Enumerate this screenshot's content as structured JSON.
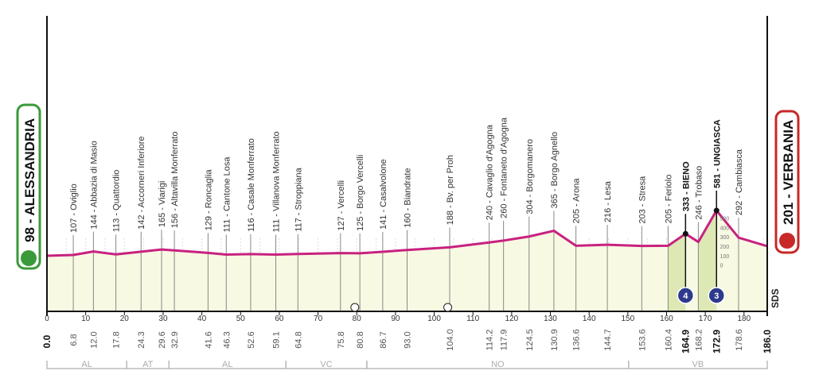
{
  "start": {
    "label": "98 - ALESSANDRIA",
    "color": "#3a9a3a"
  },
  "finish": {
    "label": "201 - VERBANIA",
    "color": "#c82828"
  },
  "chart_data": {
    "type": "area",
    "xlim": [
      0,
      186
    ],
    "ylabel": "",
    "xticks": [
      0,
      10,
      20,
      30,
      40,
      50,
      60,
      70,
      80,
      90,
      100,
      110,
      120,
      130,
      140,
      150,
      160,
      170,
      180
    ],
    "mini_scale": [
      0,
      100,
      200,
      300,
      400,
      500
    ],
    "line_color": "#c8217f",
    "points": [
      {
        "km": "0.0",
        "elev": 98,
        "name": "",
        "bold": true
      },
      {
        "km": "6.8",
        "elev": 107,
        "name": "107 - Oviglio"
      },
      {
        "km": "12.0",
        "elev": 144,
        "name": "144 - Abbazia di Masio"
      },
      {
        "km": "17.8",
        "elev": 113,
        "name": "113 - Quattordio"
      },
      {
        "km": "24.3",
        "elev": 142,
        "name": "142 - Accorneri Inferiore"
      },
      {
        "km": "29.6",
        "elev": 165,
        "name": "165 - Viarigi"
      },
      {
        "km": "32.9",
        "elev": 156,
        "name": "156 - Altavilla Monferrato"
      },
      {
        "km": "41.6",
        "elev": 129,
        "name": "129 - Roncaglia"
      },
      {
        "km": "46.3",
        "elev": 111,
        "name": "111 - Cantone Losa"
      },
      {
        "km": "52.6",
        "elev": 116,
        "name": "116 - Casale Monferrato"
      },
      {
        "km": "59.1",
        "elev": 111,
        "name": "111 - Villanova Monferrato"
      },
      {
        "km": "64.8",
        "elev": 117,
        "name": "117 - Stroppiana"
      },
      {
        "km": "75.8",
        "elev": 127,
        "name": "127 - Vercelli"
      },
      {
        "km": "80.8",
        "elev": 125,
        "name": "125 - Borgo Vercelli"
      },
      {
        "km": "86.7",
        "elev": 141,
        "name": "141 - Casalvolone"
      },
      {
        "km": "93.0",
        "elev": 160,
        "name": "160 - Biandrate"
      },
      {
        "km": "104.0",
        "elev": 188,
        "name": "188 - Bv. per Proh"
      },
      {
        "km": "114.2",
        "elev": 240,
        "name": "240 - Cavaglio d'Agogna"
      },
      {
        "km": "117.9",
        "elev": 260,
        "name": "260 - Fontaneto d'Agogna"
      },
      {
        "km": "124.5",
        "elev": 304,
        "name": "304 - Borgomanero"
      },
      {
        "km": "130.9",
        "elev": 365,
        "name": "365 - Borgo Agnello"
      },
      {
        "km": "136.6",
        "elev": 205,
        "name": "205 - Arona"
      },
      {
        "km": "144.7",
        "elev": 216,
        "name": "216 - Lesa"
      },
      {
        "km": "153.6",
        "elev": 203,
        "name": "203 - Stresa"
      },
      {
        "km": "160.4",
        "elev": 205,
        "name": "205 - Feriolo"
      },
      {
        "km": "164.9",
        "elev": 333,
        "name": "333 - BIENO",
        "bold": true,
        "gpm": "4"
      },
      {
        "km": "168.2",
        "elev": 246,
        "name": "246 - Trobaso"
      },
      {
        "km": "172.9",
        "elev": 581,
        "name": "581 - UNGIASCA",
        "bold": true,
        "gpm": "3"
      },
      {
        "km": "178.6",
        "elev": 292,
        "name": "292 - Cambiasca"
      },
      {
        "km": "186.0",
        "elev": 201,
        "name": "",
        "bold": true
      }
    ],
    "sprints": [
      79.5,
      103.5
    ],
    "regions": [
      {
        "name": "AL",
        "from": 0,
        "to": 20.6
      },
      {
        "name": "AT",
        "from": 20.6,
        "to": 31.5
      },
      {
        "name": "AL",
        "from": 31.5,
        "to": 61.7
      },
      {
        "name": "VC",
        "from": 61.7,
        "to": 82.6
      },
      {
        "name": "NO",
        "from": 82.6,
        "to": 150.2
      },
      {
        "name": "VB",
        "from": 150.2,
        "to": 186
      }
    ],
    "sds_label": "SDS"
  }
}
